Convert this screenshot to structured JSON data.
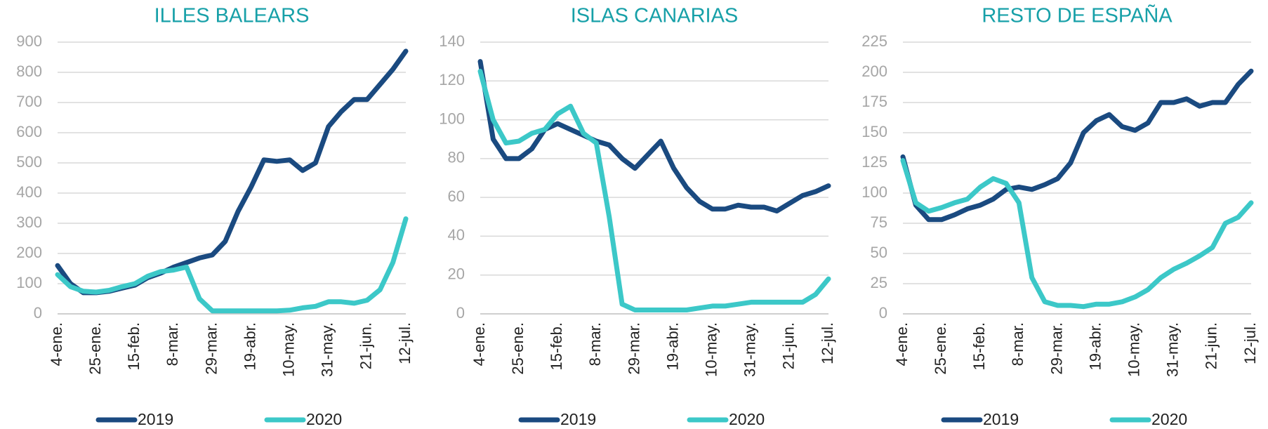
{
  "chart_data": [
    {
      "type": "line",
      "title": "ILLES BALEARS",
      "categories": [
        "4-ene.",
        null,
        null,
        "25-ene.",
        null,
        null,
        "15-feb.",
        null,
        null,
        "8-mar.",
        null,
        null,
        "29-mar.",
        null,
        null,
        "19-abr.",
        null,
        null,
        "10-may.",
        null,
        null,
        "31-may.",
        null,
        null,
        "21-jun.",
        null,
        null,
        "12-jul."
      ],
      "series": [
        {
          "name": "2019",
          "color": "#1a4a80",
          "values": [
            160,
            100,
            70,
            70,
            75,
            85,
            95,
            120,
            135,
            155,
            170,
            185,
            195,
            240,
            340,
            420,
            510,
            505,
            510,
            475,
            500,
            620,
            670,
            710,
            710,
            760,
            810,
            870
          ]
        },
        {
          "name": "2020",
          "color": "#3cc8c8",
          "values": [
            130,
            90,
            75,
            72,
            78,
            90,
            100,
            125,
            140,
            145,
            155,
            50,
            10,
            10,
            10,
            10,
            10,
            10,
            12,
            20,
            25,
            40,
            40,
            35,
            45,
            80,
            170,
            315
          ]
        }
      ],
      "ylim": [
        0,
        900
      ],
      "yticks": [
        0,
        100,
        200,
        300,
        400,
        500,
        600,
        700,
        800,
        900
      ],
      "grid": true
    },
    {
      "type": "line",
      "title": "ISLAS CANARIAS",
      "categories": [
        "4-ene.",
        null,
        null,
        "25-ene.",
        null,
        null,
        "15-feb.",
        null,
        null,
        "8-mar.",
        null,
        null,
        "29-mar.",
        null,
        null,
        "19-abr.",
        null,
        null,
        "10-may.",
        null,
        null,
        "31-may.",
        null,
        null,
        "21-jun.",
        null,
        null,
        "12-jul."
      ],
      "series": [
        {
          "name": "2019",
          "color": "#1a4a80",
          "values": [
            130,
            90,
            80,
            80,
            85,
            95,
            98,
            95,
            92,
            89,
            87,
            80,
            75,
            82,
            89,
            75,
            65,
            58,
            54,
            54,
            56,
            55,
            55,
            53,
            57,
            61,
            63,
            66
          ]
        },
        {
          "name": "2020",
          "color": "#3cc8c8",
          "values": [
            125,
            100,
            88,
            89,
            93,
            95,
            103,
            107,
            93,
            88,
            50,
            5,
            2,
            2,
            2,
            2,
            2,
            3,
            4,
            4,
            5,
            6,
            6,
            6,
            6,
            6,
            10,
            18
          ]
        }
      ],
      "ylim": [
        0,
        140
      ],
      "yticks": [
        0,
        20,
        40,
        60,
        80,
        100,
        120,
        140
      ],
      "grid": true
    },
    {
      "type": "line",
      "title": "RESTO DE ESPAÑA",
      "categories": [
        "4-ene.",
        null,
        null,
        "25-ene.",
        null,
        null,
        "15-feb.",
        null,
        null,
        "8-mar.",
        null,
        null,
        "29-mar.",
        null,
        null,
        "19-abr.",
        null,
        null,
        "10-may.",
        null,
        null,
        "31-may.",
        null,
        null,
        "21-jun.",
        null,
        null,
        "12-jul."
      ],
      "series": [
        {
          "name": "2019",
          "color": "#1a4a80",
          "values": [
            130,
            90,
            78,
            78,
            82,
            87,
            90,
            95,
            103,
            105,
            103,
            107,
            112,
            125,
            150,
            160,
            165,
            155,
            152,
            158,
            175,
            175,
            178,
            172,
            175,
            175,
            190,
            201
          ]
        },
        {
          "name": "2020",
          "color": "#3cc8c8",
          "values": [
            127,
            92,
            85,
            88,
            92,
            95,
            105,
            112,
            108,
            92,
            30,
            10,
            7,
            7,
            6,
            8,
            8,
            10,
            14,
            20,
            30,
            37,
            42,
            48,
            55,
            75,
            80,
            92
          ]
        }
      ],
      "ylim": [
        0,
        225
      ],
      "yticks": [
        0,
        25,
        50,
        75,
        100,
        125,
        150,
        175,
        200,
        225
      ],
      "grid": true
    }
  ]
}
